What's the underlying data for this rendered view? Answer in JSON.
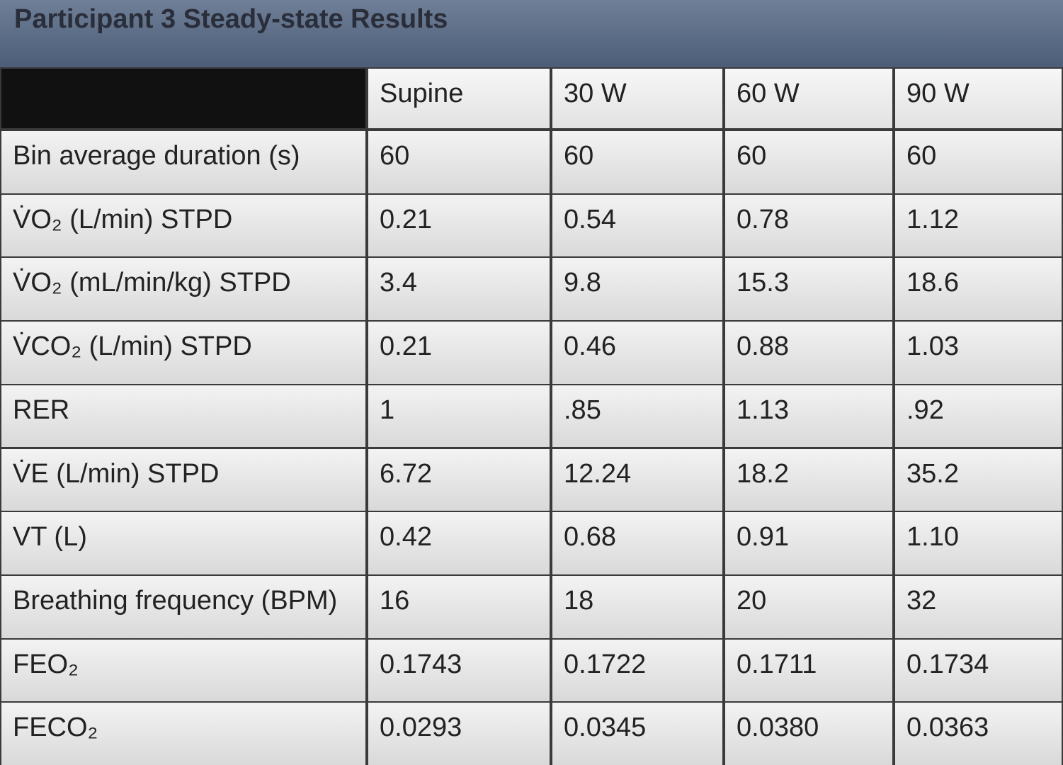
{
  "header": {
    "title": "Participant 3 Steady-state Results"
  },
  "table": {
    "columns": [
      "Supine",
      "30 W",
      "60 W",
      "90 W"
    ],
    "rows": [
      [
        "Bin average duration (s)",
        "60",
        "60",
        "60",
        "60"
      ],
      [
        "V̇O₂ (L/min) STPD",
        "0.21",
        "0.54",
        "0.78",
        "1.12"
      ],
      [
        "V̇O₂ (mL/min/kg) STPD",
        "3.4",
        "9.8",
        "15.3",
        "18.6"
      ],
      [
        "V̇CO₂ (L/min) STPD",
        "0.21",
        "0.46",
        "0.88",
        "1.03"
      ],
      [
        "RER",
        "1",
        ".85",
        "1.13",
        ".92"
      ],
      [
        "V̇E (L/min) STPD",
        "6.72",
        "12.24",
        "18.2",
        "35.2"
      ],
      [
        "VT (L)",
        "0.42",
        "0.68",
        "0.91",
        "1.10"
      ],
      [
        "Breathing frequency (BPM)",
        "16",
        "18",
        "20",
        "32"
      ],
      [
        "FEO₂",
        "0.1743",
        "0.1722",
        "0.1711",
        "0.1734"
      ],
      [
        "FECO₂",
        "0.0293",
        "0.0345",
        "0.0380",
        "0.0363"
      ]
    ]
  }
}
